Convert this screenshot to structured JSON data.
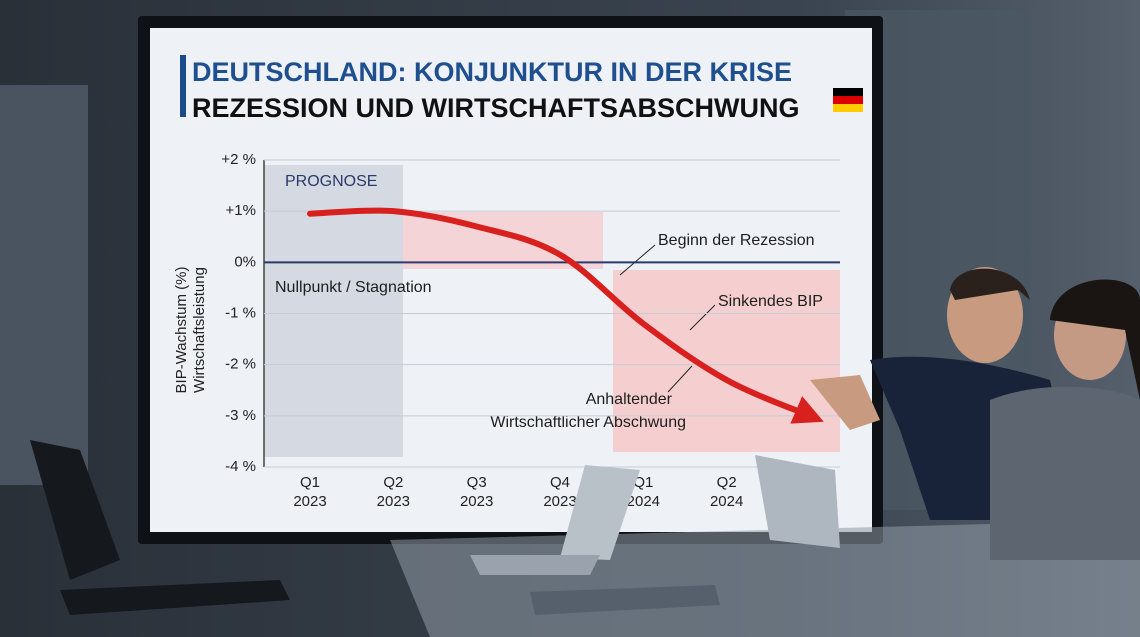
{
  "chart_data": {
    "type": "line",
    "title": "DEUTSCHLAND: KONJUNKTUR IN DER KRISE",
    "subtitle": "REZESSION UND WIRTSCHAFTSABSCHWUNG",
    "y_label": [
      "BIP-Wachstum (%)",
      "Wirtschaftsleistung"
    ],
    "categories": [
      "Q1 2023",
      "Q2 2023",
      "Q3 2023",
      "Q4 2023",
      "Q1 2024",
      "Q2 2024",
      null
    ],
    "values": [
      0.95,
      1.0,
      0.7,
      0.15,
      -1.2,
      -2.3,
      -3.0
    ],
    "color": "#d8201e",
    "ylim": [
      -4,
      2
    ],
    "yticks": [
      {
        "value": 2,
        "label": "+2 %"
      },
      {
        "value": 1,
        "label": "+1%"
      },
      {
        "value": 0,
        "label": "0%"
      },
      {
        "value": -1,
        "label": "-1 %"
      },
      {
        "value": -2,
        "label": "-2 %"
      },
      {
        "value": -3,
        "label": "-3 %"
      },
      {
        "value": -4,
        "label": "-4 %"
      }
    ],
    "grid": true,
    "annotations": {
      "forecast": "PROGNOSE",
      "zero": "Nullpunkt / Stagnation",
      "recession_start": "Beginn der Rezession",
      "falling": "Sinkendes BIP",
      "downturn": [
        "Anhaltender",
        "Wirtschaftlicher Abschwung"
      ]
    }
  }
}
